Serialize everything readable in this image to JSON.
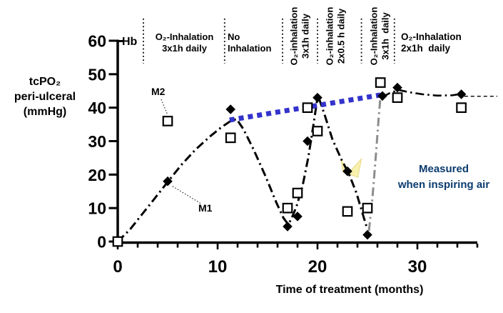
{
  "chart_data": {
    "type": "scatter",
    "title": "",
    "xlabel": "Time of treatment (months)",
    "ylabel": "tcPO2 peri-ulceral (mmHg)",
    "hb_label": "Hb",
    "x_axis": {
      "label": "Time of treatment (months)",
      "min": 0,
      "max": 36,
      "major_ticks": [
        0,
        10,
        20,
        30
      ],
      "minor_tick_step": 2
    },
    "y_axis": {
      "label_lines": [
        "tcPO₂",
        "peri-ulceral",
        "(mmHg)"
      ],
      "min": 0,
      "max": 60,
      "ticks": [
        0,
        10,
        20,
        30,
        40,
        50,
        60
      ]
    },
    "grid": false,
    "legend": "none",
    "series": [
      {
        "name": "filled-diamond-series",
        "marker": "filled-diamond",
        "color": "#000000",
        "points": [
          [
            0,
            0
          ],
          [
            5,
            18
          ],
          [
            11.3,
            39.5
          ],
          [
            17,
            4.5
          ],
          [
            18,
            7.5
          ],
          [
            19,
            30
          ],
          [
            20,
            43
          ],
          [
            23,
            21
          ],
          [
            25,
            2
          ],
          [
            26.5,
            43.5
          ],
          [
            28,
            46
          ],
          [
            34.4,
            44
          ]
        ]
      },
      {
        "name": "open-square-series",
        "marker": "open-square",
        "color": "#000000",
        "points": [
          [
            0,
            0
          ],
          [
            5,
            36
          ],
          [
            11.3,
            31
          ],
          [
            17,
            10
          ],
          [
            18,
            14.5
          ],
          [
            19,
            40
          ],
          [
            20,
            33
          ],
          [
            23,
            9
          ],
          [
            25,
            10
          ],
          [
            26.3,
            47.5
          ],
          [
            28,
            43
          ],
          [
            34.4,
            40
          ]
        ]
      }
    ],
    "lines": [
      {
        "id": "course-main",
        "color": "#000000",
        "dash": "dashdot",
        "width": 3,
        "points": [
          [
            0,
            0
          ],
          [
            1.2,
            3.5
          ],
          [
            2.4,
            8
          ],
          [
            3.6,
            12.5
          ],
          [
            5,
            17.8
          ],
          [
            6.4,
            23
          ],
          [
            7.8,
            27.5
          ],
          [
            9.2,
            31.3
          ],
          [
            10.4,
            34.2
          ],
          [
            11.3,
            36
          ],
          [
            11.9,
            36.6
          ],
          [
            12.6,
            33.5
          ],
          [
            13.6,
            27.5
          ],
          [
            14.8,
            19.5
          ],
          [
            15.9,
            11.5
          ],
          [
            16.6,
            7
          ],
          [
            17.05,
            5.2
          ],
          [
            17.35,
            6.5
          ],
          [
            17.9,
            10.5
          ],
          [
            18.5,
            16.5
          ],
          [
            19.1,
            25.5
          ],
          [
            19.6,
            35
          ],
          [
            19.95,
            42
          ],
          [
            20.15,
            42.8
          ],
          [
            20.7,
            38
          ],
          [
            21.5,
            30.5
          ],
          [
            22.4,
            24.5
          ],
          [
            23.15,
            20.2
          ],
          [
            23.9,
            14.5
          ],
          [
            24.55,
            8
          ],
          [
            25.0,
            3.6
          ]
        ]
      },
      {
        "id": "course-recovery",
        "color": "#8c8c8c",
        "dash": "dashdot",
        "width": 3,
        "points": [
          [
            25.15,
            3.2
          ],
          [
            25.5,
            13
          ],
          [
            25.85,
            26
          ],
          [
            26.1,
            36
          ],
          [
            26.3,
            43.2
          ]
        ]
      },
      {
        "id": "course-plateau",
        "color": "#000000",
        "dash": "dashdot",
        "width": 2.6,
        "points": [
          [
            26.5,
            43.2
          ],
          [
            27.2,
            44.3
          ],
          [
            28.1,
            45.3
          ],
          [
            29.2,
            44.6
          ],
          [
            30.5,
            44
          ],
          [
            32,
            43.6
          ],
          [
            33.5,
            43.7
          ],
          [
            34.35,
            44.1
          ]
        ]
      },
      {
        "id": "course-tail",
        "color": "#000000",
        "dash": "dashed",
        "width": 1.4,
        "points": [
          [
            34.7,
            43.4
          ],
          [
            38,
            43.4
          ]
        ]
      },
      {
        "id": "inspiring-air-trend",
        "color": "#3333cc",
        "dash": "blocks",
        "width": 7,
        "points": [
          [
            11.2,
            36.3
          ],
          [
            26.3,
            43.8
          ]
        ]
      }
    ],
    "phase_separators_months": [
      2.57,
      10.7,
      16.5,
      20.0,
      24.4,
      27.7
    ],
    "phases": [
      {
        "lines": [
          "O₂-Inhalation",
          "3x1h daily"
        ],
        "orientation": "horizontal"
      },
      {
        "lines": [
          "No",
          "Inhalation"
        ],
        "orientation": "horizontal"
      },
      {
        "lines": [
          "O₂-inhalation",
          "3x1h daily"
        ],
        "orientation": "vertical"
      },
      {
        "lines": [
          "O₂-inhalation",
          "2x0.5 h daily"
        ],
        "orientation": "vertical"
      },
      {
        "lines": [
          "O₂-Inhalation",
          "3x1h  daily"
        ],
        "orientation": "vertical"
      },
      {
        "lines": [
          "O₂-Inhalation",
          "2x1h  daily"
        ],
        "orientation": "horizontal"
      }
    ],
    "point_labels": [
      {
        "text": "M2",
        "leader": [
          [
            4.35,
            42.5
          ],
          [
            4.95,
            38.2
          ]
        ]
      },
      {
        "text": "M1",
        "leader": [
          [
            5.5,
            16.5
          ],
          [
            8.35,
            11.3
          ]
        ]
      }
    ],
    "note": {
      "lines": [
        "Measured",
        "when inspiring air"
      ],
      "color": "#0c3c6e"
    },
    "highlight_mark": {
      "color": "#f8f1ad",
      "edge": "#e8d98a",
      "points": [
        [
          22.35,
          24.3
        ],
        [
          23.25,
          21.0
        ],
        [
          24.4,
          24.7
        ],
        [
          24.05,
          19.2
        ],
        [
          22.55,
          20.8
        ]
      ]
    },
    "colors": {
      "axis": "#000000",
      "trend_blue": "#3333cc",
      "recovery_gray": "#8c8c8c",
      "note_navy": "#0c3c6e",
      "highlight_yellow": "#f8f1ad"
    }
  }
}
